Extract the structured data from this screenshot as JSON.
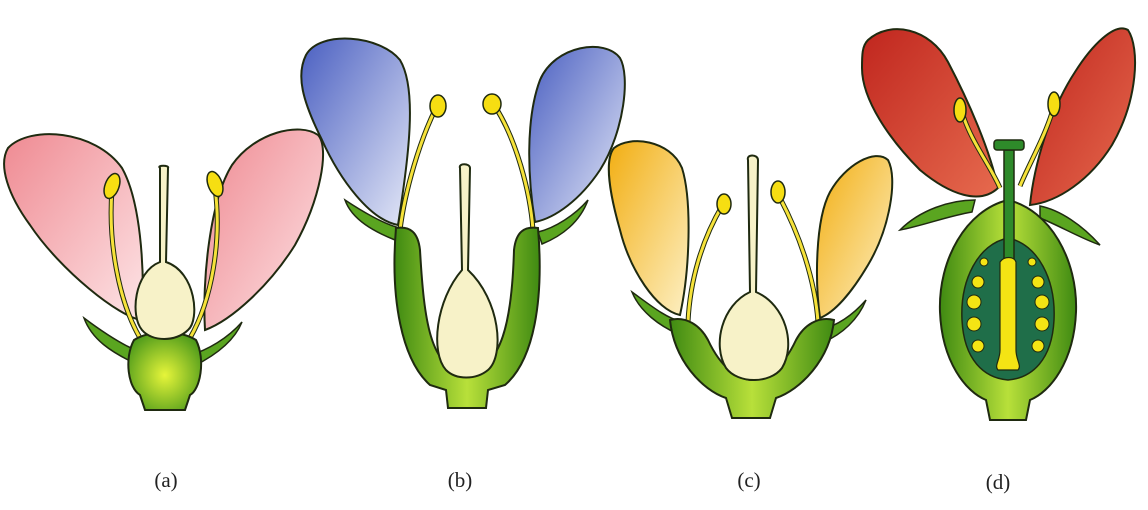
{
  "figure": {
    "panels": [
      {
        "id": "a",
        "label": "(a)",
        "petal_color": "#ef8a92",
        "petal_light": "#fde4e6"
      },
      {
        "id": "b",
        "label": "(b)",
        "petal_color": "#4a5fc1",
        "petal_light": "#e4e8f7"
      },
      {
        "id": "c",
        "label": "(c)",
        "petal_color": "#f2ae12",
        "petal_light": "#fdf0c4"
      },
      {
        "id": "d",
        "label": "(d)",
        "petal_color": "#c0261e",
        "petal_light": "#e66a4e"
      }
    ],
    "colors": {
      "receptacle_dark": "#4d9a1a",
      "receptacle_light": "#b6e23a",
      "ovary_cream": "#f7f2c8",
      "anther": "#f6de12",
      "outline": "#1f2a10",
      "ovule_yellow": "#f4e414",
      "locule_green": "#1f6e49"
    }
  }
}
